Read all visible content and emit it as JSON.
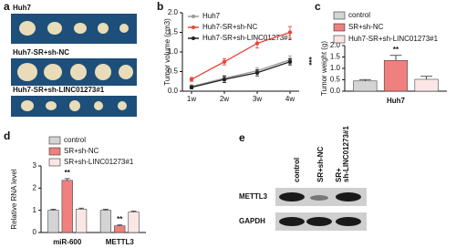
{
  "panel_a": {
    "label": "a",
    "groups": [
      "Huh7",
      "Huh7-SR+sh-NC",
      "Huh7-SR+sh-LINC01273#1"
    ]
  },
  "chart_data": [
    {
      "label": "b",
      "type": "line",
      "y_label": "Tumor volume (cm3)",
      "categories": [
        "1w",
        "2w",
        "3w",
        "4w"
      ],
      "ylim": [
        0,
        2
      ],
      "yticks": [
        {
          "value": 0,
          "label": "0.0"
        },
        {
          "value": 0.5,
          "label": "0.5"
        },
        {
          "value": 1,
          "label": "1.0"
        },
        {
          "value": 1.5,
          "label": "1.5"
        },
        {
          "value": 2,
          "label": "2.0"
        }
      ],
      "annotation": "***",
      "series": [
        {
          "name": "Huh7",
          "color": "#9a9a9a",
          "values": [
            0.12,
            0.33,
            0.52,
            0.8
          ],
          "errors": [
            0.04,
            0.07,
            0.08,
            0.1
          ]
        },
        {
          "name": "Huh7-SR+sh-NC",
          "color": "#e8453c",
          "values": [
            0.3,
            0.75,
            1.22,
            1.5
          ],
          "errors": [
            0.05,
            0.08,
            0.12,
            0.15
          ]
        },
        {
          "name": "Huh7-SR+sh-LINC01273#1",
          "color": "#222222",
          "values": [
            0.1,
            0.3,
            0.47,
            0.75
          ],
          "errors": [
            0.04,
            0.08,
            0.08,
            0.08
          ]
        }
      ]
    },
    {
      "label": "c",
      "type": "bar",
      "y_label": "Tumor weight (g)",
      "categories": [
        "Huh7"
      ],
      "ylim": [
        0,
        2
      ],
      "yticks": [
        {
          "value": 0,
          "label": "0.0"
        },
        {
          "value": 0.5,
          "label": "0.5"
        },
        {
          "value": 1,
          "label": "1.0"
        },
        {
          "value": 1.5,
          "label": "1.5"
        },
        {
          "value": 2,
          "label": "2.0"
        }
      ],
      "series": [
        {
          "name": "control",
          "color": "#d4d4d4",
          "values": [
            0.45
          ],
          "errors": [
            0.06
          ]
        },
        {
          "name": "SR+sh-NC",
          "color": "#f07f7f",
          "values": [
            1.35
          ],
          "errors": [
            0.22
          ],
          "annotations": [
            "**"
          ]
        },
        {
          "name": "Huh7-SR+sh-LINC01273#1",
          "color": "#fbe6e6",
          "values": [
            0.52
          ],
          "errors": [
            0.13
          ]
        }
      ]
    },
    {
      "label": "d",
      "type": "bar",
      "y_label": "Relative RNA level",
      "categories": [
        "miR-600",
        "METTL3"
      ],
      "ylim": [
        0,
        3
      ],
      "yticks": [
        0,
        1,
        2,
        3
      ],
      "series": [
        {
          "name": "control",
          "color": "#d4d4d4",
          "values": [
            1,
            1
          ],
          "errors": [
            0.04,
            0.04
          ]
        },
        {
          "name": "SR+sh-NC",
          "color": "#f07f7f",
          "values": [
            2.35,
            0.3
          ],
          "errors": [
            0.08,
            0.04
          ],
          "annotations": [
            "**",
            "**"
          ]
        },
        {
          "name": "SR+sh-LINC01273#1",
          "color": "#fbe6e6",
          "values": [
            1.05,
            0.92
          ],
          "errors": [
            0.05,
            0.04
          ]
        }
      ]
    }
  ],
  "panel_e": {
    "label": "e",
    "lanes": [
      [
        "control"
      ],
      [
        "SR+sh-NC"
      ],
      [
        "SR+",
        "sh-LINC01273#1"
      ]
    ],
    "rows": [
      "METTL3",
      "GAPDH"
    ]
  }
}
